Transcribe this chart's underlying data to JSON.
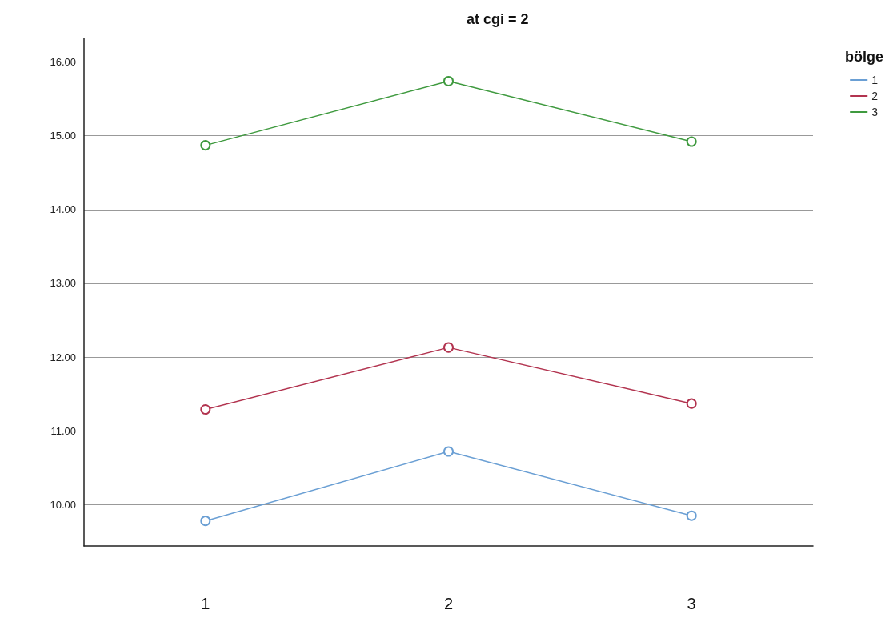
{
  "chart_data": {
    "type": "line",
    "title": "at cgi = 2",
    "legend_title": "bölge",
    "categories": [
      "1",
      "2",
      "3"
    ],
    "series": [
      {
        "name": "1",
        "color": "#6a9fd4",
        "values": [
          9.78,
          10.72,
          9.85
        ]
      },
      {
        "name": "2",
        "color": "#b2334f",
        "values": [
          11.29,
          12.13,
          11.37
        ]
      },
      {
        "name": "3",
        "color": "#3f9a3f",
        "values": [
          14.87,
          15.74,
          14.92
        ]
      }
    ],
    "ylim": [
      9.44,
      16.32
    ],
    "yticks": [
      {
        "value": 10,
        "label": "10.00"
      },
      {
        "value": 11,
        "label": "11.00"
      },
      {
        "value": 12,
        "label": "12.00"
      },
      {
        "value": 13,
        "label": "13.00"
      },
      {
        "value": 14,
        "label": "14.00"
      },
      {
        "value": 15,
        "label": "15.00"
      },
      {
        "value": 16,
        "label": "16.00"
      }
    ],
    "grid": "y",
    "legend": "top right",
    "marker": "circle",
    "line_style": "solid"
  }
}
